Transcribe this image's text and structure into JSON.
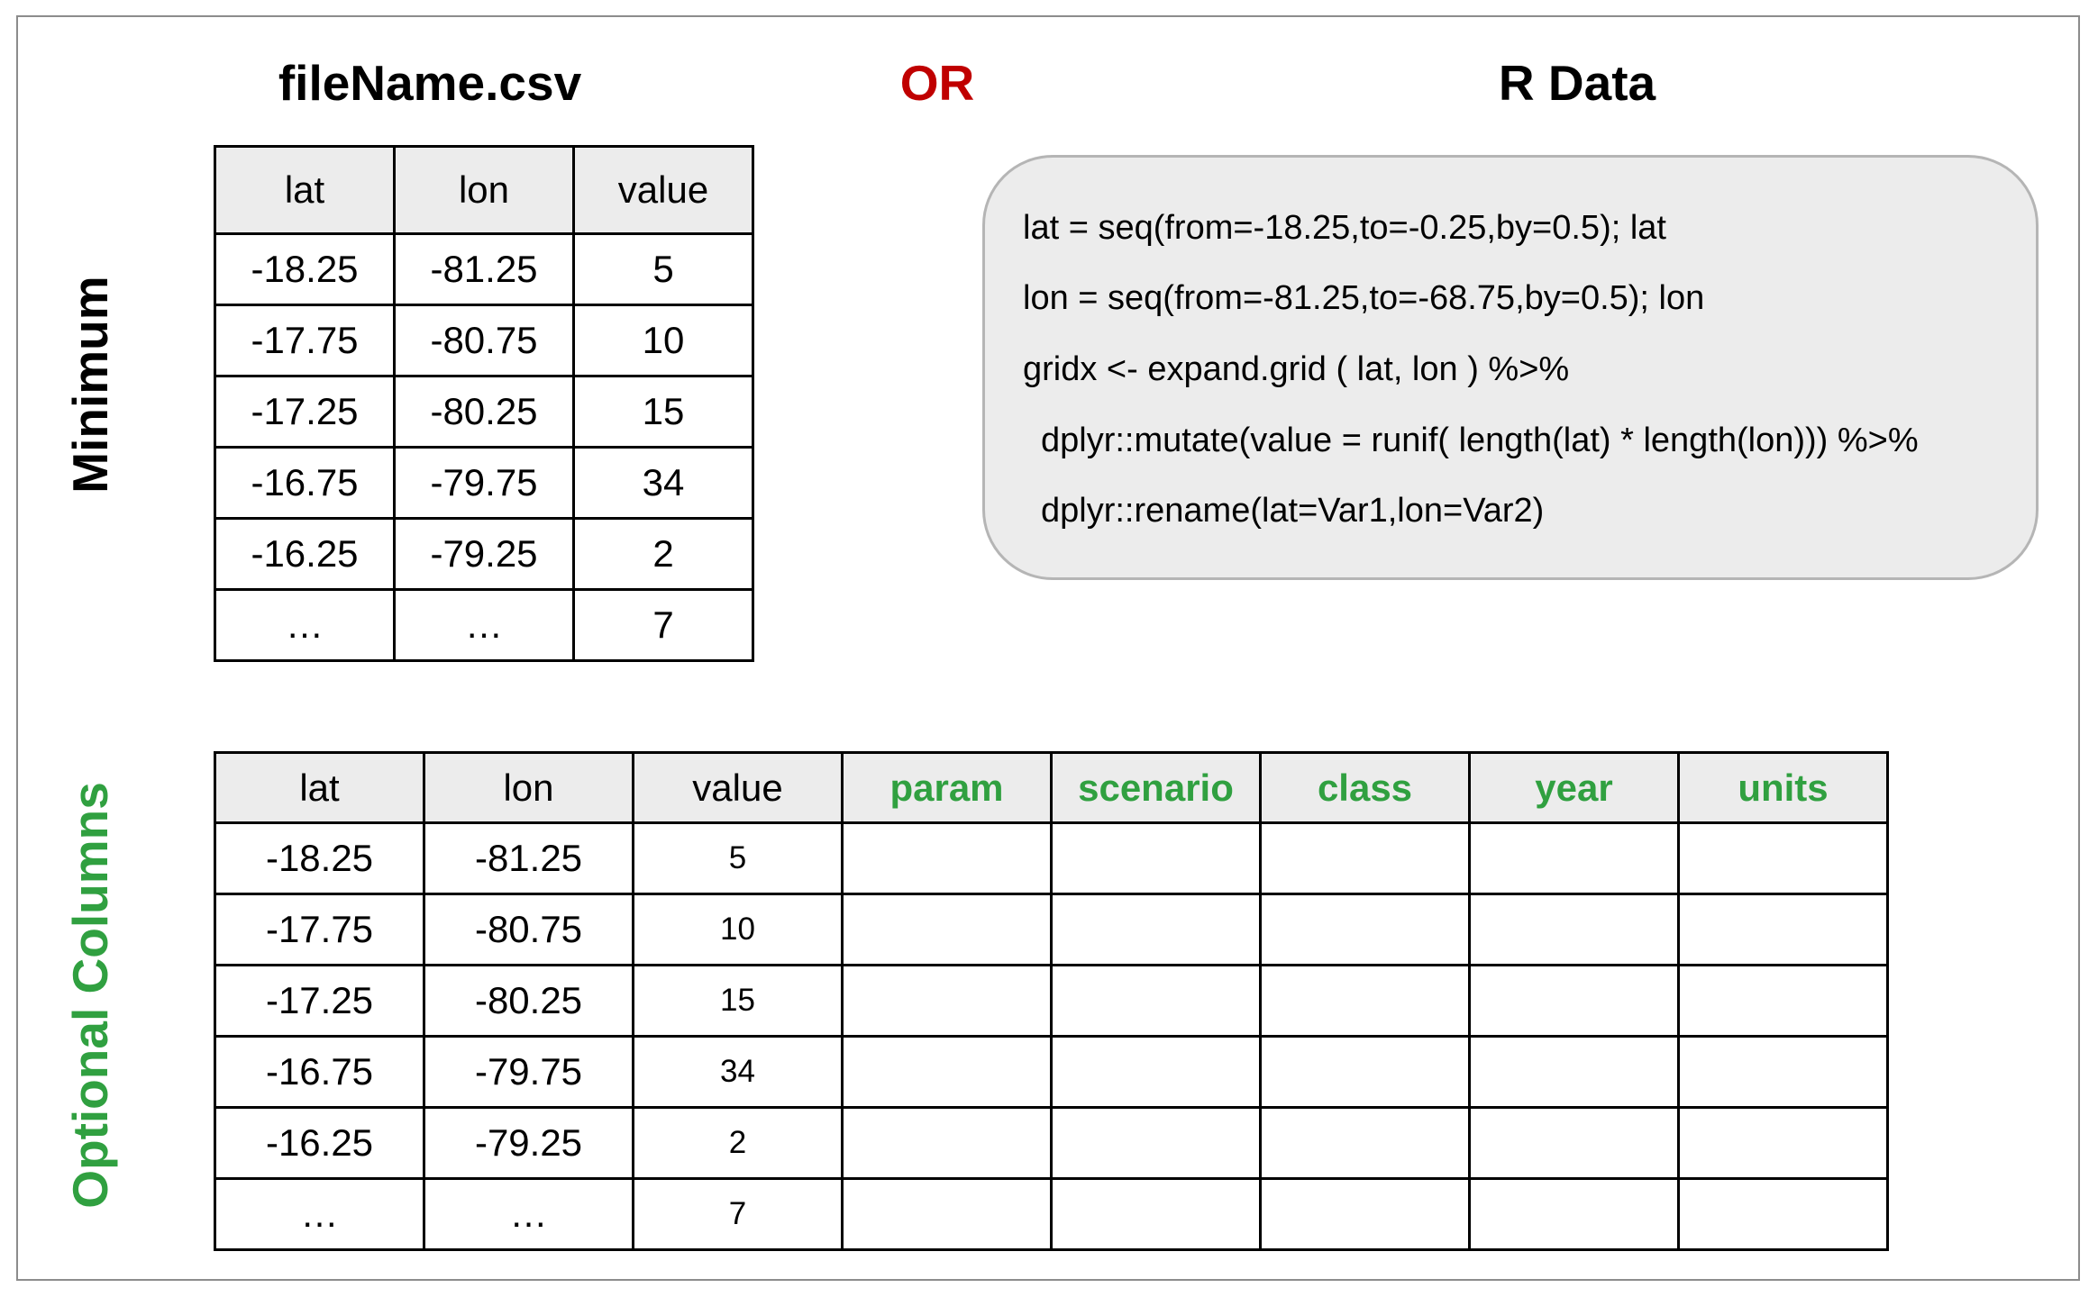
{
  "headers": {
    "file": "fileName.csv",
    "or": "OR",
    "rdata": "R Data"
  },
  "side_labels": {
    "minimum": "Minimum",
    "optional": "Optional Columns"
  },
  "min_table": {
    "columns": [
      "lat",
      "lon",
      "value"
    ],
    "rows": [
      [
        "-18.25",
        "-81.25",
        "5"
      ],
      [
        "-17.75",
        "-80.75",
        "10"
      ],
      [
        "-17.25",
        "-80.25",
        "15"
      ],
      [
        "-16.75",
        "-79.75",
        "34"
      ],
      [
        "-16.25",
        "-79.25",
        "2"
      ],
      [
        "…",
        "…",
        "7"
      ]
    ]
  },
  "opt_table": {
    "columns": [
      "lat",
      "lon",
      "value",
      "param",
      "scenario",
      "class",
      "year",
      "units"
    ],
    "rows": [
      [
        "-18.25",
        "-81.25",
        "5",
        "",
        "",
        "",
        "",
        ""
      ],
      [
        "-17.75",
        "-80.75",
        "10",
        "",
        "",
        "",
        "",
        ""
      ],
      [
        "-17.25",
        "-80.25",
        "15",
        "",
        "",
        "",
        "",
        ""
      ],
      [
        "-16.75",
        "-79.75",
        "34",
        "",
        "",
        "",
        "",
        ""
      ],
      [
        "-16.25",
        "-79.25",
        "2",
        "",
        "",
        "",
        "",
        ""
      ],
      [
        "…",
        "…",
        "7",
        "",
        "",
        "",
        "",
        ""
      ]
    ]
  },
  "code": [
    "lat = seq(from=-18.25,to=-0.25,by=0.5); lat",
    "lon = seq(from=-81.25,to=-68.75,by=0.5); lon",
    "gridx <- expand.grid ( lat, lon ) %>%",
    "dplyr::mutate(value = runif( length(lat) * length(lon))) %>%",
    "dplyr::rename(lat=Var1,lon=Var2)"
  ],
  "colors": {
    "or": "#c00000",
    "optional": "#30a040",
    "header_fill": "#ececec",
    "code_fill": "#ececec"
  }
}
